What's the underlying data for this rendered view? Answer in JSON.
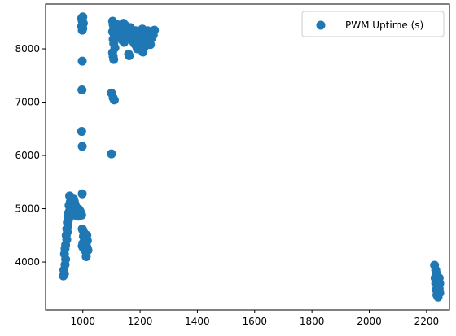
{
  "chart_data": {
    "type": "scatter",
    "title": "",
    "xlabel": "",
    "ylabel": "",
    "xlim": [
      870,
      2280
    ],
    "ylim": [
      3100,
      8840
    ],
    "x_ticks": [
      1000,
      1200,
      1400,
      1600,
      1800,
      2000,
      2200
    ],
    "x_tick_labels": [
      "1000",
      "1200",
      "1400",
      "1600",
      "1800",
      "2000",
      "2200"
    ],
    "y_ticks": [
      4000,
      5000,
      6000,
      7000,
      8000
    ],
    "y_tick_labels": [
      "4000",
      "5000",
      "6000",
      "7000",
      "8000"
    ],
    "grid": false,
    "legend_position": "top-right",
    "series": [
      {
        "name": "PWM Uptime (s)",
        "color": "#1f77b4",
        "marker": "circle",
        "points": [
          [
            932,
            3740
          ],
          [
            936,
            3780
          ],
          [
            934,
            3850
          ],
          [
            938,
            3950
          ],
          [
            940,
            4050
          ],
          [
            936,
            4150
          ],
          [
            938,
            4250
          ],
          [
            940,
            4320
          ],
          [
            944,
            4420
          ],
          [
            942,
            4500
          ],
          [
            946,
            4560
          ],
          [
            944,
            4620
          ],
          [
            948,
            4680
          ],
          [
            946,
            4740
          ],
          [
            950,
            4790
          ],
          [
            948,
            4840
          ],
          [
            952,
            4880
          ],
          [
            950,
            4920
          ],
          [
            954,
            4960
          ],
          [
            956,
            5010
          ],
          [
            952,
            5060
          ],
          [
            956,
            5120
          ],
          [
            958,
            5180
          ],
          [
            954,
            5240
          ],
          [
            962,
            4900
          ],
          [
            960,
            4980
          ],
          [
            964,
            5060
          ],
          [
            966,
            5130
          ],
          [
            968,
            5180
          ],
          [
            970,
            5140
          ],
          [
            972,
            5100
          ],
          [
            974,
            5060
          ],
          [
            976,
            5020
          ],
          [
            978,
            4980
          ],
          [
            982,
            5000
          ],
          [
            986,
            4990
          ],
          [
            990,
            4960
          ],
          [
            976,
            4920
          ],
          [
            970,
            4880
          ],
          [
            984,
            4860
          ],
          [
            988,
            4900
          ],
          [
            992,
            4930
          ],
          [
            996,
            4880
          ],
          [
            998,
            4620
          ],
          [
            1000,
            4600
          ],
          [
            1004,
            4550
          ],
          [
            1002,
            4480
          ],
          [
            1006,
            4420
          ],
          [
            1000,
            4350
          ],
          [
            1004,
            4300
          ],
          [
            1008,
            4280
          ],
          [
            1012,
            4380
          ],
          [
            1010,
            4450
          ],
          [
            1014,
            4500
          ],
          [
            1016,
            4400
          ],
          [
            1012,
            4320
          ],
          [
            1016,
            4260
          ],
          [
            1010,
            4200
          ],
          [
            1018,
            4220
          ],
          [
            1012,
            4100
          ],
          [
            1008,
            4250
          ],
          [
            998,
            4300
          ],
          [
            1002,
            4260
          ],
          [
            1006,
            4340
          ],
          [
            998,
            5280
          ],
          [
            996,
            8570
          ],
          [
            1000,
            8600
          ],
          [
            998,
            8520
          ],
          [
            1002,
            8480
          ],
          [
            996,
            8420
          ],
          [
            1000,
            8380
          ],
          [
            998,
            8350
          ],
          [
            998,
            7770
          ],
          [
            997,
            7230
          ],
          [
            996,
            6450
          ],
          [
            998,
            6170
          ],
          [
            1100,
            7170
          ],
          [
            1106,
            7080
          ],
          [
            1110,
            7040
          ],
          [
            1100,
            6030
          ],
          [
            1104,
            8520
          ],
          [
            1106,
            8450
          ],
          [
            1108,
            8380
          ],
          [
            1104,
            8320
          ],
          [
            1110,
            8250
          ],
          [
            1106,
            8180
          ],
          [
            1108,
            8100
          ],
          [
            1112,
            8020
          ],
          [
            1104,
            7930
          ],
          [
            1106,
            7860
          ],
          [
            1108,
            7800
          ],
          [
            1118,
            8460
          ],
          [
            1124,
            8400
          ],
          [
            1130,
            8350
          ],
          [
            1136,
            8420
          ],
          [
            1142,
            8480
          ],
          [
            1148,
            8440
          ],
          [
            1154,
            8380
          ],
          [
            1160,
            8330
          ],
          [
            1166,
            8400
          ],
          [
            1172,
            8350
          ],
          [
            1178,
            8290
          ],
          [
            1184,
            8340
          ],
          [
            1190,
            8300
          ],
          [
            1196,
            8250
          ],
          [
            1202,
            8310
          ],
          [
            1208,
            8370
          ],
          [
            1214,
            8330
          ],
          [
            1220,
            8280
          ],
          [
            1226,
            8340
          ],
          [
            1232,
            8300
          ],
          [
            1238,
            8260
          ],
          [
            1244,
            8320
          ],
          [
            1250,
            8350
          ],
          [
            1120,
            8300
          ],
          [
            1126,
            8250
          ],
          [
            1132,
            8200
          ],
          [
            1138,
            8160
          ],
          [
            1144,
            8120
          ],
          [
            1150,
            8180
          ],
          [
            1156,
            8230
          ],
          [
            1162,
            8280
          ],
          [
            1168,
            8200
          ],
          [
            1174,
            8150
          ],
          [
            1180,
            8100
          ],
          [
            1186,
            8060
          ],
          [
            1192,
            8120
          ],
          [
            1198,
            8180
          ],
          [
            1204,
            8140
          ],
          [
            1210,
            8090
          ],
          [
            1216,
            8040
          ],
          [
            1222,
            8110
          ],
          [
            1228,
            8170
          ],
          [
            1234,
            8120
          ],
          [
            1240,
            8200
          ],
          [
            1246,
            8260
          ],
          [
            1160,
            7900
          ],
          [
            1162,
            7870
          ],
          [
            1206,
            7980
          ],
          [
            1210,
            7940
          ],
          [
            1190,
            8000
          ],
          [
            1236,
            8080
          ],
          [
            1140,
            8260
          ],
          [
            1176,
            8250
          ],
          [
            1200,
            8220
          ],
          [
            1218,
            8200
          ],
          [
            1230,
            8230
          ],
          [
            1152,
            8300
          ],
          [
            1186,
            8280
          ],
          [
            2228,
            3940
          ],
          [
            2232,
            3850
          ],
          [
            2236,
            3780
          ],
          [
            2230,
            3700
          ],
          [
            2238,
            3650
          ],
          [
            2232,
            3600
          ],
          [
            2240,
            3540
          ],
          [
            2234,
            3480
          ],
          [
            2242,
            3420
          ],
          [
            2236,
            3380
          ],
          [
            2240,
            3340
          ],
          [
            2244,
            3700
          ],
          [
            2246,
            3600
          ],
          [
            2244,
            3500
          ],
          [
            2238,
            3450
          ],
          [
            2242,
            3560
          ],
          [
            2246,
            3420
          ]
        ]
      }
    ]
  }
}
